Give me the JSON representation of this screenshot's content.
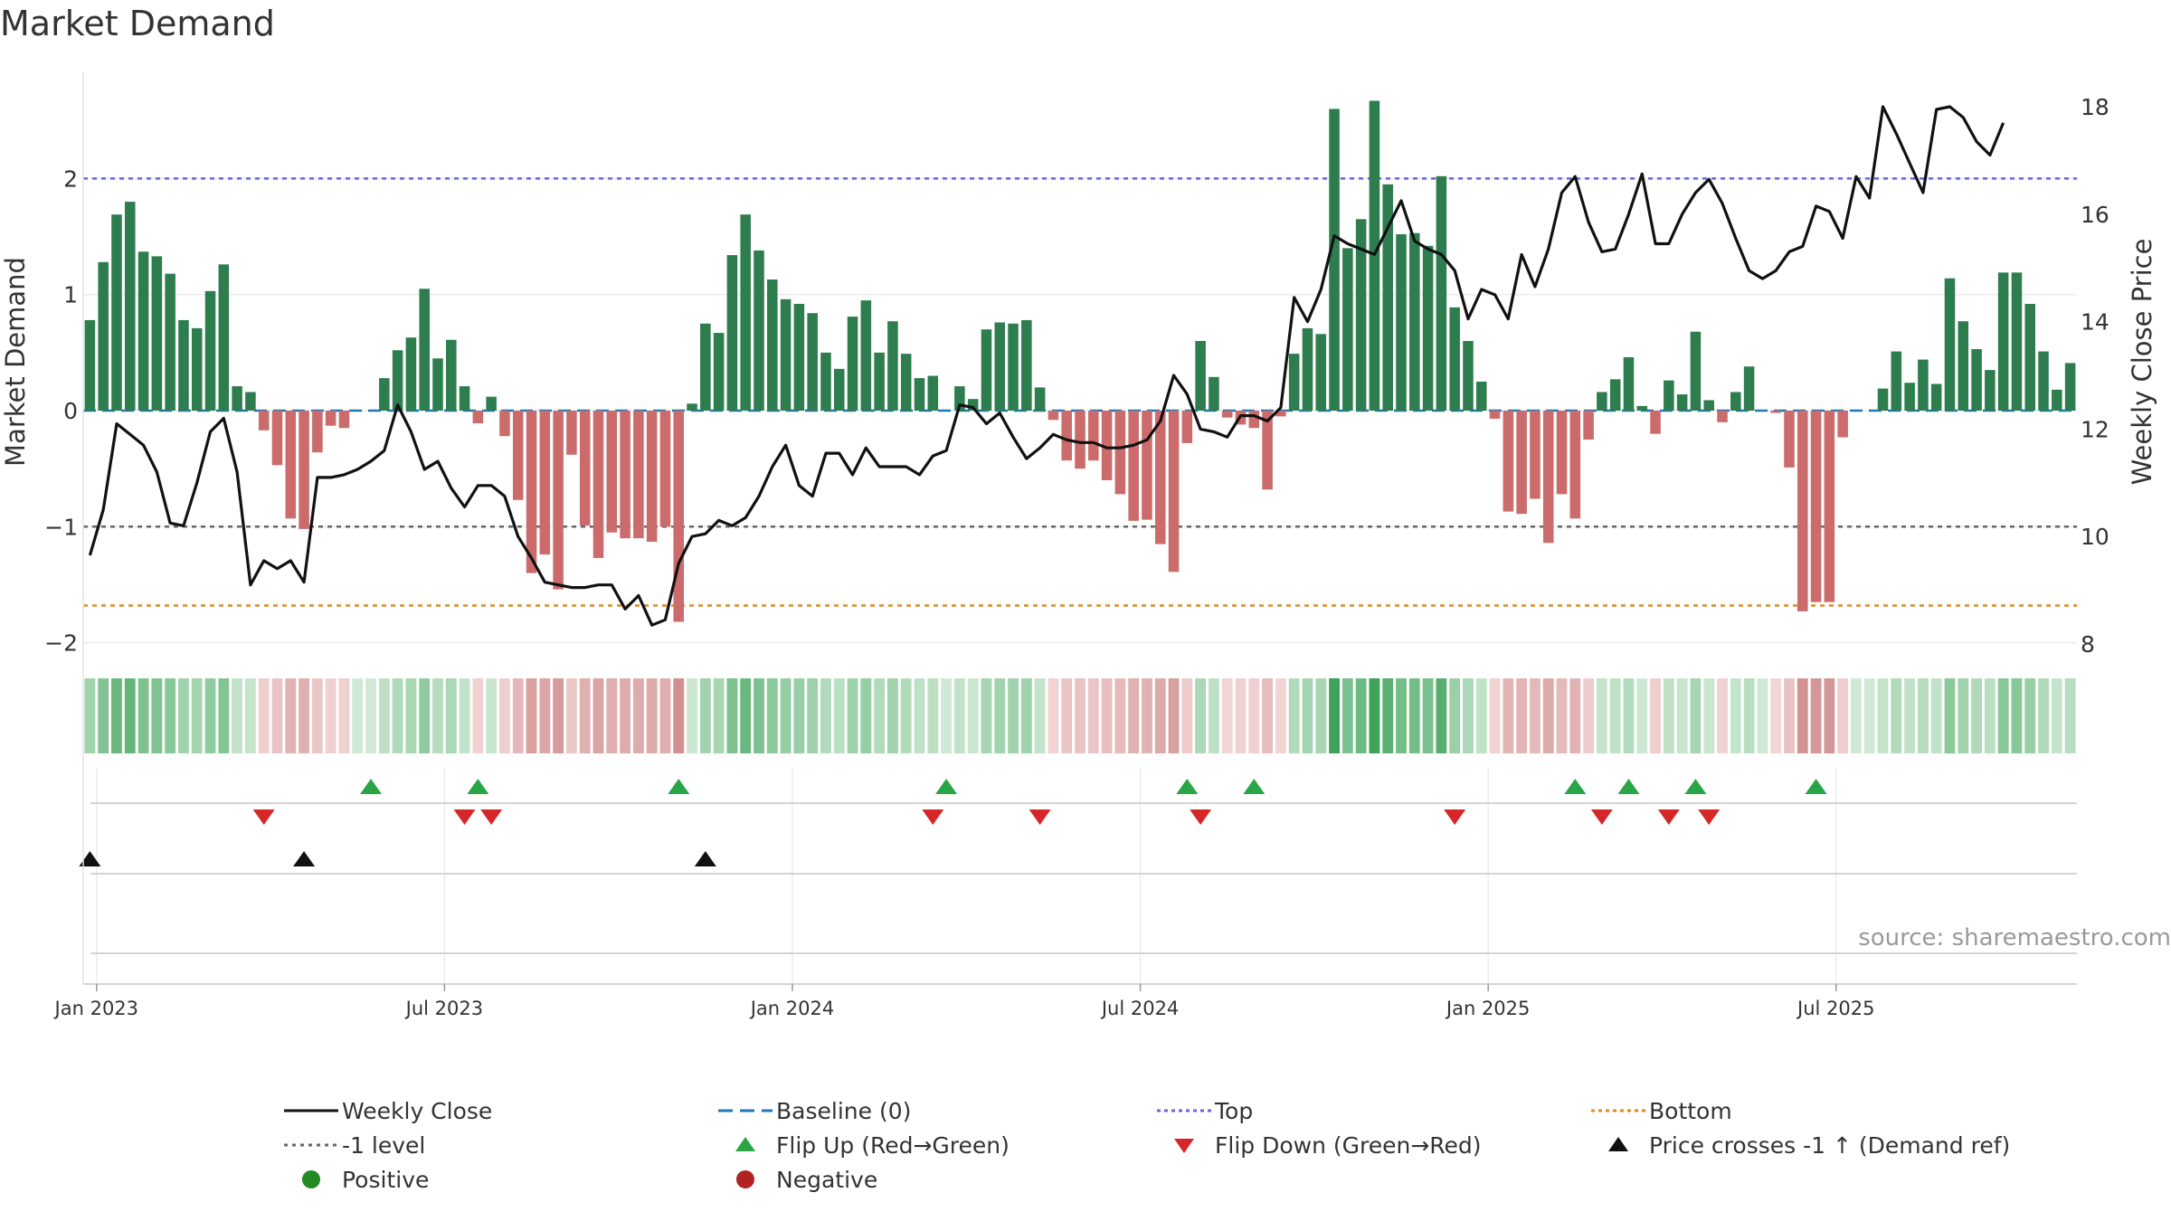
{
  "chart_data": {
    "type": "bar+line",
    "title": "Market Demand",
    "ylabel": "Market Demand",
    "y2label": "Weekly Close Price",
    "ylim": [
      -2.1,
      2.9
    ],
    "y2lim": [
      7.85,
      18.35
    ],
    "yticks": [
      "2",
      "1",
      "0",
      "−1",
      "−2"
    ],
    "yticks_values": [
      2,
      1,
      0,
      -1,
      -2
    ],
    "y2ticks": [
      "18",
      "16",
      "14",
      "12",
      "10",
      "8"
    ],
    "y2ticks_values": [
      18,
      16,
      14,
      12,
      10,
      8
    ],
    "xticks": [
      "Jan 2023",
      "Jul 2023",
      "Jan 2024",
      "Jul 2024",
      "Jan 2025",
      "Jul 2025"
    ],
    "xticks_weeks": [
      0.5,
      26.5,
      52.5,
      78.5,
      104.5,
      130.5
    ],
    "reference_lines": {
      "top": 2.0,
      "bottom": -1.68,
      "minus1_level": -1.0,
      "baseline": 0
    },
    "demand": [
      0.78,
      1.28,
      1.69,
      1.8,
      1.37,
      1.33,
      1.18,
      0.78,
      0.71,
      1.03,
      1.26,
      0.21,
      0.16,
      -0.17,
      -0.47,
      -0.93,
      -1.02,
      -0.36,
      -0.13,
      -0.15,
      0,
      0,
      0.28,
      0.52,
      0.63,
      1.05,
      0.45,
      0.61,
      0.21,
      -0.11,
      0.12,
      -0.22,
      -0.77,
      -1.4,
      -1.24,
      -1.54,
      -0.38,
      -0.99,
      -1.27,
      -1.05,
      -1.1,
      -1.1,
      -1.13,
      -1.0,
      -1.82,
      0.06,
      0.75,
      0.67,
      1.34,
      1.69,
      1.38,
      1.13,
      0.96,
      0.92,
      0.84,
      0.5,
      0.36,
      0.81,
      0.95,
      0.5,
      0.77,
      0.49,
      0.28,
      0.3,
      0,
      0.21,
      0.1,
      0.7,
      0.76,
      0.75,
      0.78,
      0.2,
      -0.08,
      -0.43,
      -0.5,
      -0.43,
      -0.6,
      -0.72,
      -0.95,
      -0.94,
      -1.15,
      -1.39,
      -0.28,
      0.6,
      0.29,
      -0.06,
      -0.12,
      -0.15,
      -0.68,
      -0.05,
      0.49,
      0.71,
      0.66,
      2.6,
      1.4,
      1.65,
      2.67,
      1.95,
      1.52,
      1.53,
      1.42,
      2.02,
      0.89,
      0.6,
      0.25,
      -0.07,
      -0.87,
      -0.89,
      -0.76,
      -1.14,
      -0.72,
      -0.93,
      -0.25,
      0.16,
      0.27,
      0.46,
      0.04,
      -0.2,
      0.26,
      0.14,
      0.68,
      0.09,
      -0.1,
      0.16,
      0.38,
      0,
      -0.02,
      -0.49,
      -1.73,
      -1.65,
      -1.65,
      -0.23,
      0,
      0,
      0.19,
      0.51,
      0.24,
      0.44,
      0.23,
      1.14,
      0.77,
      0.53,
      0.35,
      1.19,
      1.19,
      0.92,
      0.51,
      0.18,
      0.41
    ],
    "weekly_close": [
      9.65,
      10.5,
      12.1,
      11.9,
      11.7,
      11.2,
      10.25,
      10.2,
      11.0,
      11.95,
      12.2,
      11.2,
      9.1,
      9.55,
      9.4,
      9.55,
      9.15,
      11.1,
      11.1,
      11.15,
      11.25,
      11.4,
      11.6,
      12.45,
      11.95,
      11.25,
      11.4,
      10.9,
      10.55,
      10.95,
      10.95,
      10.75,
      10.0,
      9.6,
      9.15,
      9.1,
      9.05,
      9.05,
      9.1,
      9.1,
      8.65,
      8.9,
      8.35,
      8.45,
      9.5,
      10.0,
      10.05,
      10.3,
      10.2,
      10.35,
      10.75,
      11.3,
      11.7,
      10.95,
      10.75,
      11.55,
      11.55,
      11.15,
      11.65,
      11.3,
      11.3,
      11.3,
      11.15,
      11.5,
      11.6,
      12.45,
      12.4,
      12.1,
      12.3,
      11.85,
      11.45,
      11.65,
      11.9,
      11.8,
      11.75,
      11.75,
      11.65,
      11.65,
      11.7,
      11.8,
      12.15,
      13.0,
      12.65,
      12.0,
      11.95,
      11.85,
      12.25,
      12.25,
      12.15,
      12.4,
      14.45,
      14.0,
      14.6,
      15.6,
      15.45,
      15.35,
      15.25,
      15.75,
      16.25,
      15.5,
      15.35,
      15.25,
      14.95,
      14.05,
      14.6,
      14.5,
      14.05,
      15.25,
      14.65,
      15.35,
      16.4,
      16.7,
      15.85,
      15.3,
      15.35,
      16.0,
      16.75,
      15.45,
      15.45,
      16.0,
      16.4,
      16.65,
      16.2,
      15.55,
      14.95,
      14.8,
      14.95,
      15.3,
      15.4,
      16.15,
      16.05,
      15.55,
      16.7,
      16.3,
      18.0,
      17.5,
      16.95,
      16.4,
      17.95,
      18.0,
      17.8,
      17.35,
      17.1,
      17.7
    ],
    "flip_up_weeks": [
      21,
      29,
      44,
      64,
      82,
      87,
      111,
      115,
      120,
      129
    ],
    "flip_down_weeks": [
      13,
      28,
      30,
      63,
      71,
      83,
      102,
      113,
      118,
      121
    ],
    "price_cross_weeks": [
      0,
      16,
      46
    ],
    "colors": {
      "positive_bar": "#2e7d4f",
      "negative_bar": "#cc6b6b",
      "close_line": "#111111",
      "baseline": "#1f77b4",
      "top": "#6666dd",
      "bottom": "#e08a1e",
      "minus1": "#666666",
      "flip_up": "#2aa545",
      "flip_down": "#d62728",
      "cross": "#111111",
      "positive_dot": "#228b22",
      "negative_dot": "#b22222"
    },
    "legend": [
      {
        "label": "Weekly Close",
        "kind": "solid-line",
        "color": "#111111"
      },
      {
        "label": "Baseline (0)",
        "kind": "dashed-line",
        "color": "#1f77b4"
      },
      {
        "label": "Top",
        "kind": "dotted-line",
        "color": "#6666dd"
      },
      {
        "label": "Bottom",
        "kind": "dotted-line",
        "color": "#e08a1e"
      },
      {
        "label": "-1 level",
        "kind": "dotted-line",
        "color": "#666666"
      },
      {
        "label": "Flip Up (Red→Green)",
        "kind": "triangle-up",
        "color": "#2aa545"
      },
      {
        "label": "Flip Down (Green→Red)",
        "kind": "triangle-down",
        "color": "#d62728"
      },
      {
        "label": "Price crosses -1 ↑ (Demand ref)",
        "kind": "triangle-up",
        "color": "#111111"
      },
      {
        "label": "Positive",
        "kind": "dot",
        "color": "#228b22"
      },
      {
        "label": "Negative",
        "kind": "dot",
        "color": "#b22222"
      }
    ],
    "source": "source: sharemaestro.com"
  }
}
